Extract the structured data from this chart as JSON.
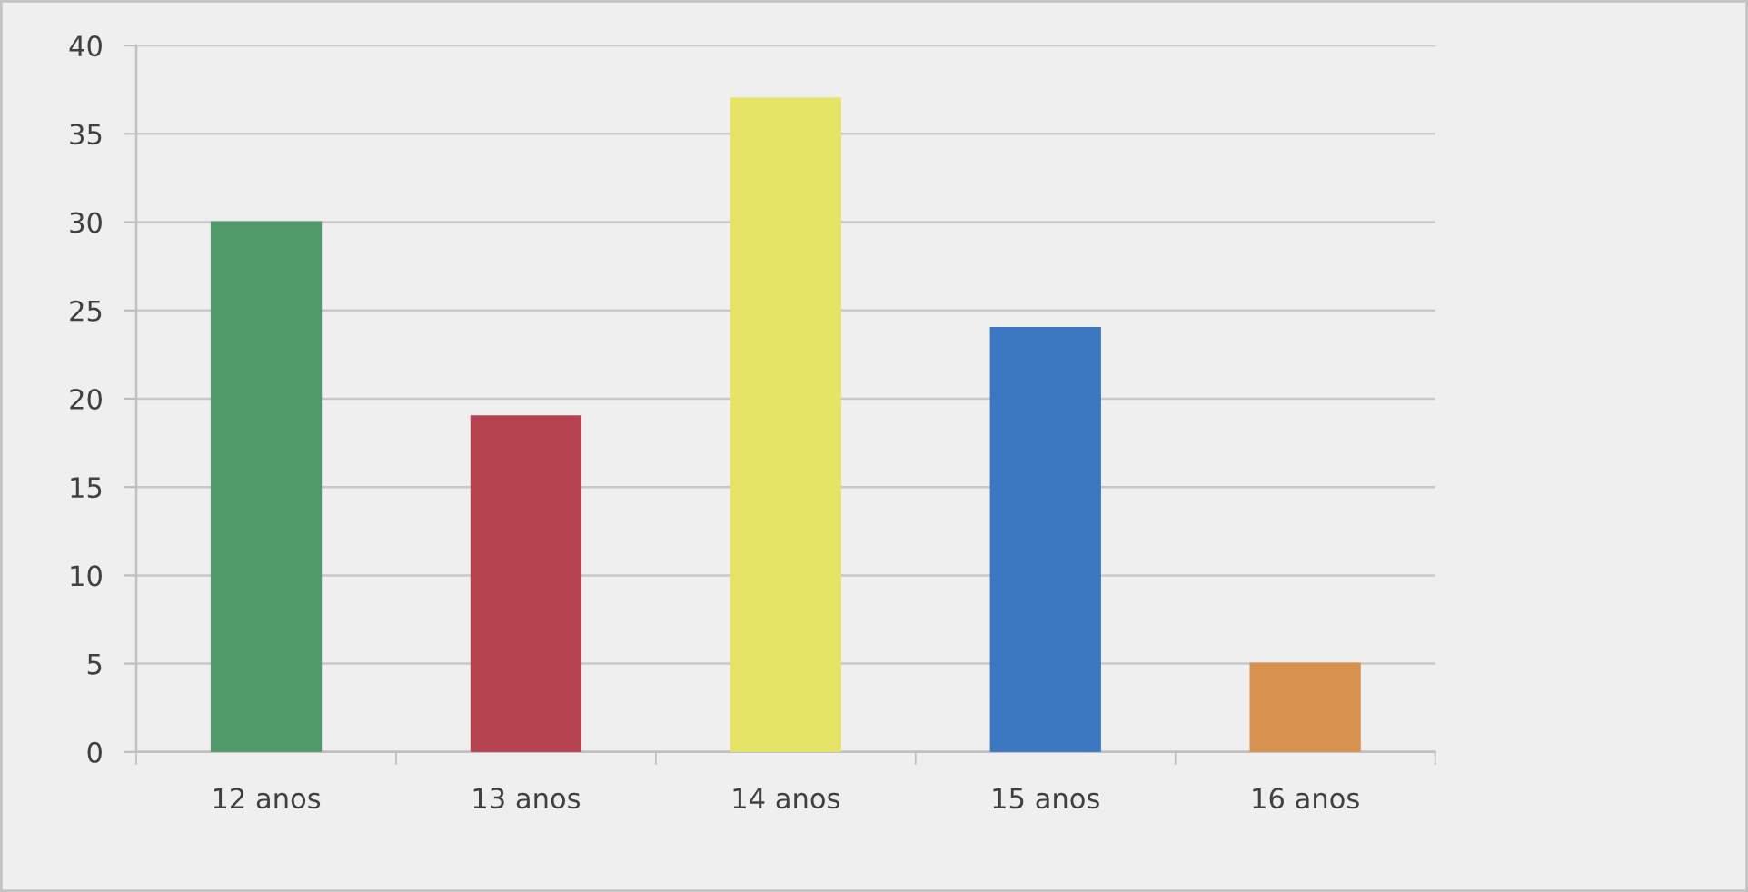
{
  "chart_data": {
    "type": "bar",
    "categories": [
      "12 anos",
      "13 anos",
      "14 anos",
      "15 anos",
      "16 anos"
    ],
    "values": [
      30,
      19,
      37,
      24,
      5
    ],
    "colors": [
      "#4f9a68",
      "#b5434f",
      "#e6e467",
      "#3c78c0",
      "#d6924e"
    ],
    "ylim": [
      0,
      40
    ],
    "yticks": [
      0,
      5,
      10,
      15,
      20,
      25,
      30,
      35,
      40
    ],
    "grid": "y"
  }
}
